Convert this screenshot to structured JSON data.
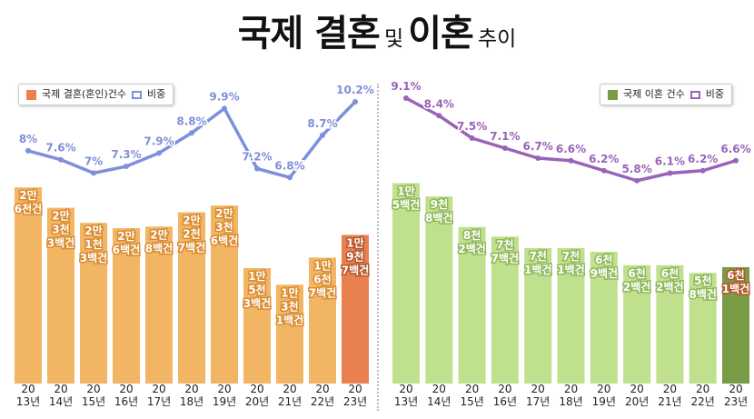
{
  "title": {
    "part1": "국제 결혼",
    "part2": "및",
    "part3": "이혼",
    "part4": "추이"
  },
  "colors": {
    "marriage_bar": "#f2b563",
    "marriage_bar_highlight": "#e8804f",
    "marriage_line": "#7f8fdb",
    "divorce_bar": "#bfe08c",
    "divorce_bar_highlight": "#7a9b45",
    "divorce_line": "#9a63b8"
  },
  "chart_data": [
    {
      "type": "bar",
      "categories": [
        "20\n13년",
        "20\n14년",
        "20\n15년",
        "20\n16년",
        "20\n17년",
        "20\n18년",
        "20\n19년",
        "20\n20년",
        "20\n21년",
        "20\n22년",
        "20\n23년"
      ],
      "series": [
        {
          "name": "국제 결혼(혼인)건수",
          "values": [
            26000,
            23300,
            21300,
            20600,
            20800,
            22700,
            23600,
            15300,
            13100,
            16700,
            19700
          ],
          "bar_labels": [
            [
              "2만",
              "6천건"
            ],
            [
              "2만",
              "3천",
              "3백건"
            ],
            [
              "2만",
              "1천",
              "3백건"
            ],
            [
              "2만",
              "6백건"
            ],
            [
              "2만",
              "8백건"
            ],
            [
              "2만",
              "2천",
              "7백건"
            ],
            [
              "2만",
              "3천",
              "6백건"
            ],
            [
              "1만",
              "5천",
              "3백건"
            ],
            [
              "1만",
              "3천",
              "1백건"
            ],
            [
              "1만",
              "6천",
              "7백건"
            ],
            [
              "1만",
              "9천",
              "7백건"
            ]
          ]
        },
        {
          "name": "비중",
          "type": "line",
          "values": [
            8,
            7.6,
            7,
            7.3,
            7.9,
            8.8,
            9.9,
            7.2,
            6.8,
            8.7,
            10.2
          ],
          "labels": [
            "8%",
            "7.6%",
            "7%",
            "7.3%",
            "7.9%",
            "8.8%",
            "9.9%",
            "7.2%",
            "6.8%",
            "8.7%",
            "10.2%"
          ]
        }
      ],
      "legend": "top-left"
    },
    {
      "type": "bar",
      "categories": [
        "20\n13년",
        "20\n14년",
        "20\n15년",
        "20\n16년",
        "20\n17년",
        "20\n18년",
        "20\n19년",
        "20\n20년",
        "20\n21년",
        "20\n22년",
        "20\n23년"
      ],
      "series": [
        {
          "name": "국제 이혼 건수",
          "values": [
            10500,
            9800,
            8200,
            7700,
            7100,
            7100,
            6900,
            6200,
            6200,
            5800,
            6100
          ],
          "bar_labels": [
            [
              "1만",
              "5백건"
            ],
            [
              "9천",
              "8백건"
            ],
            [
              "8천",
              "2백건"
            ],
            [
              "7천",
              "7백건"
            ],
            [
              "7천",
              "1백건"
            ],
            [
              "7천",
              "1백건"
            ],
            [
              "6천",
              "9백건"
            ],
            [
              "6천",
              "2백건"
            ],
            [
              "6천",
              "2백건"
            ],
            [
              "5천",
              "8백건"
            ],
            [
              "6천",
              "1백건"
            ]
          ]
        },
        {
          "name": "비중",
          "type": "line",
          "values": [
            9.1,
            8.4,
            7.5,
            7.1,
            6.7,
            6.6,
            6.2,
            5.8,
            6.1,
            6.2,
            6.6
          ],
          "labels": [
            "9.1%",
            "8.4%",
            "7.5%",
            "7.1%",
            "6.7%",
            "6.6%",
            "6.2%",
            "5.8%",
            "6.1%",
            "6.2%",
            "6.6%"
          ]
        }
      ],
      "legend": "top-right"
    }
  ]
}
